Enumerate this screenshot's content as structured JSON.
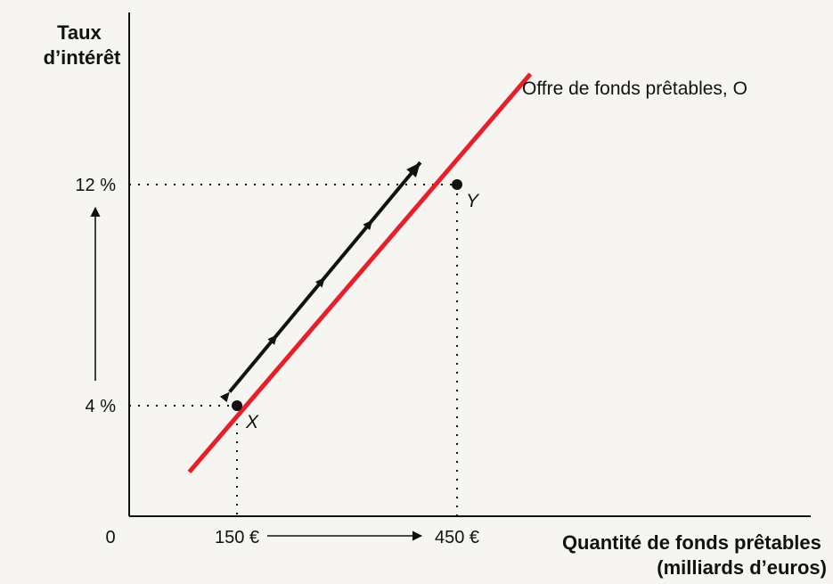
{
  "chart_data": {
    "type": "line",
    "ylabel_lines": [
      "Taux",
      "d’intérêt"
    ],
    "xlabel_lines": [
      "Quantité de fonds prêtables",
      "(milliards d’euros)"
    ],
    "origin_label": "0",
    "x_ticks": [
      {
        "value": 150,
        "label": "150 €"
      },
      {
        "value": 450,
        "label": "450 €"
      }
    ],
    "y_ticks": [
      {
        "value": 4,
        "label": "4 %"
      },
      {
        "value": 12,
        "label": "12 %"
      }
    ],
    "xlim": [
      0,
      820
    ],
    "ylim": [
      0,
      16.2
    ],
    "series": [
      {
        "name": "Offre de fonds prêtables, O",
        "color": "#e5202a",
        "x": [
          85,
          550
        ],
        "y": [
          1.6,
          16.0
        ]
      }
    ],
    "points": [
      {
        "label": "X",
        "x": 150,
        "y": 4
      },
      {
        "label": "Y",
        "x": 450,
        "y": 12
      }
    ],
    "movement_arrow": {
      "color": "#111111",
      "x": [
        140,
        400
      ],
      "y": [
        4.5,
        12.8
      ]
    },
    "colors": {
      "supply": "#e5202a",
      "axis": "#111111",
      "arrow": "#111111"
    }
  }
}
